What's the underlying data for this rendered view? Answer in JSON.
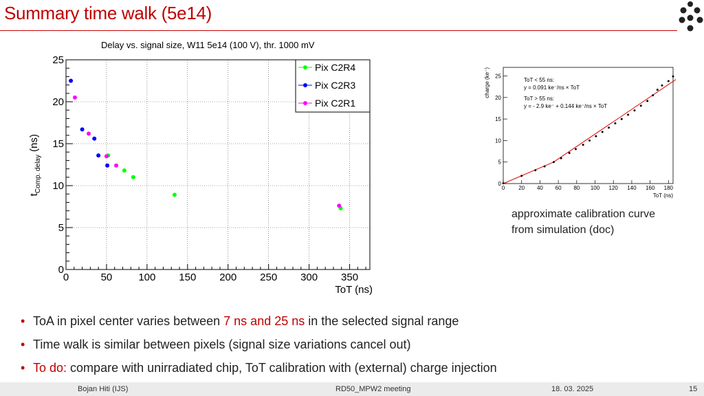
{
  "slide": {
    "title": "Summary time walk (5e14)",
    "colors": {
      "accent": "#c00000",
      "green": "#00ff00",
      "blue": "#0000ff",
      "magenta": "#ff00ff"
    }
  },
  "logo": {
    "icon": "dot-grid-logo-icon"
  },
  "main_chart": {
    "chart_data": {
      "type": "scatter",
      "title": "Delay vs. signal size, W11 5e14 (100 V), thr. 1000 mV",
      "xlabel": "ToT (ns)",
      "ylabel_main": "t",
      "ylabel_sub": "Comp. delay",
      "ylabel_unit": " (ns)",
      "xlim": [
        0,
        375
      ],
      "ylim": [
        0,
        25
      ],
      "xticks": [
        0,
        50,
        100,
        150,
        200,
        250,
        300,
        350
      ],
      "yticks": [
        0,
        5,
        10,
        15,
        20,
        25
      ],
      "grid": true,
      "legend_position": "top-right",
      "series": [
        {
          "name": "Pix C2R4",
          "color": "#00ff00",
          "points": [
            [
              52,
              13.6
            ],
            [
              72,
              11.8
            ],
            [
              83,
              11.0
            ],
            [
              134,
              8.9
            ],
            [
              339,
              7.3
            ]
          ]
        },
        {
          "name": "Pix C2R3",
          "color": "#0000ff",
          "points": [
            [
              6,
              22.5
            ],
            [
              20,
              16.7
            ],
            [
              35,
              15.6
            ],
            [
              40,
              13.6
            ],
            [
              51,
              12.4
            ]
          ]
        },
        {
          "name": "Pix C2R1",
          "color": "#ff00ff",
          "points": [
            [
              11,
              20.5
            ],
            [
              28,
              16.2
            ],
            [
              50,
              13.5
            ],
            [
              62,
              12.4
            ],
            [
              337,
              7.6
            ]
          ]
        }
      ]
    }
  },
  "side_chart": {
    "chart_data": {
      "type": "scatter",
      "xlabel": "ToT (ns)",
      "ylabel": "charge (ke⁻)",
      "xlim": [
        0,
        185
      ],
      "ylim": [
        0,
        27
      ],
      "xticks": [
        0,
        20,
        40,
        60,
        80,
        100,
        120,
        140,
        160,
        180
      ],
      "yticks": [
        0,
        5,
        10,
        15,
        20,
        25
      ],
      "grid": false,
      "points": [
        [
          0,
          0.05
        ],
        [
          20,
          1.8
        ],
        [
          35,
          3.1
        ],
        [
          45,
          4.0
        ],
        [
          55,
          5.0
        ],
        [
          63,
          5.9
        ],
        [
          72,
          7.1
        ],
        [
          79,
          8.0
        ],
        [
          87,
          9.0
        ],
        [
          94,
          10.0
        ],
        [
          101,
          11.0
        ],
        [
          108,
          12.0
        ],
        [
          115,
          13.0
        ],
        [
          122,
          14.0
        ],
        [
          129,
          15.0
        ],
        [
          136,
          16.0
        ],
        [
          143,
          17.0
        ],
        [
          150,
          18.1
        ],
        [
          157,
          19.2
        ],
        [
          163,
          20.5
        ],
        [
          168,
          21.8
        ],
        [
          173,
          22.8
        ],
        [
          180,
          23.8
        ],
        [
          186,
          24.9
        ]
      ],
      "fit_lines": [
        {
          "x": [
            0,
            55
          ],
          "y": [
            0,
            5.0
          ]
        },
        {
          "x": [
            55,
            188
          ],
          "y": [
            5.02,
            24.17
          ]
        }
      ],
      "annotations": [
        "ToT < 55 ns:",
        "y = 0.091 ke⁻/ns × ToT",
        "ToT > 55 ns:",
        "y = - 2.9 ke⁻ + 0.144 ke⁻/ns × ToT"
      ]
    },
    "caption_line1": "approximate calibration curve",
    "caption_line2": "from simulation (doc)"
  },
  "bullets": [
    {
      "pre": "ToA in pixel center varies between ",
      "highlight": "7 ns and 25 ns",
      "post": " in the selected signal range"
    },
    {
      "pre": "Time walk is similar between pixels (signal size variations cancel out)",
      "highlight": "",
      "post": ""
    },
    {
      "pre": "",
      "highlight": "To do:",
      "post": " compare with unirradiated chip, ToT calibration with (external) charge injection"
    }
  ],
  "footer": {
    "author": "Bojan Hiti (IJS)",
    "meeting": "RD50_MPW2 meeting",
    "date": "18. 03. 2025",
    "page": "15"
  }
}
